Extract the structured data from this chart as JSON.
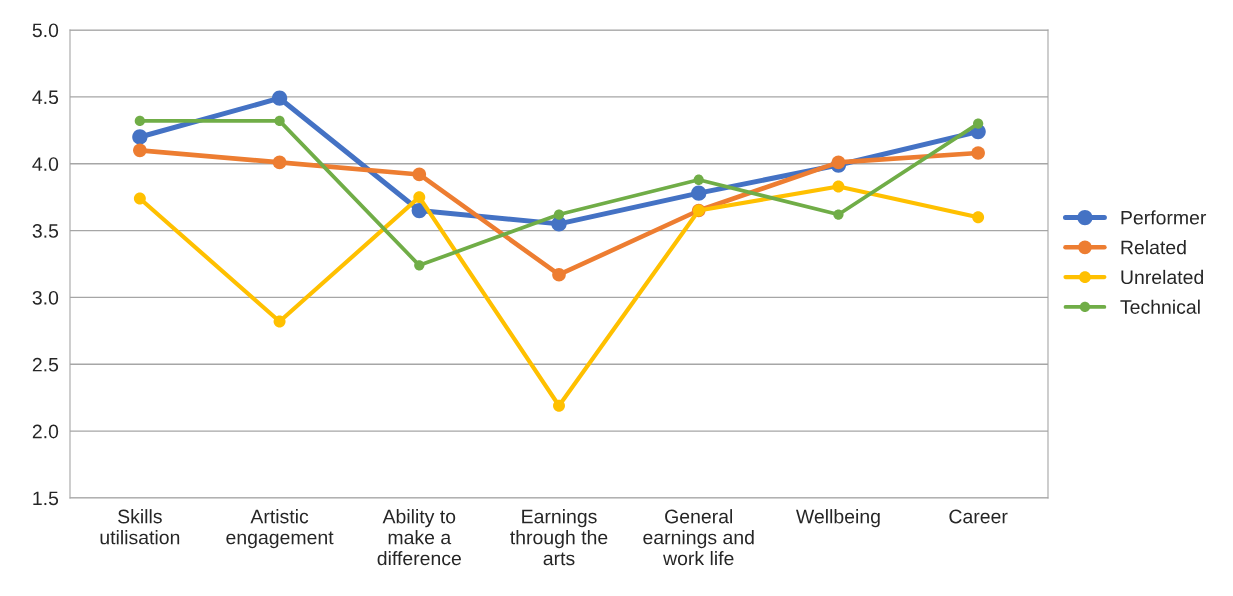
{
  "chart_data": {
    "type": "line",
    "categories": [
      "Skills\nutilisation",
      "Artistic\nengagement",
      "Ability to\nmake a\ndifference",
      "Earnings\nthrough the\narts",
      "General\nearnings and\nwork life",
      "Wellbeing",
      "Career"
    ],
    "series": [
      {
        "name": "Performer",
        "color": "#4472c4",
        "values": [
          4.2,
          4.49,
          3.65,
          3.55,
          3.78,
          3.99,
          4.24
        ]
      },
      {
        "name": "Related",
        "color": "#ed7d31",
        "values": [
          4.1,
          4.01,
          3.92,
          3.17,
          3.65,
          4.01,
          4.08
        ]
      },
      {
        "name": "Unrelated",
        "color": "#ffc000",
        "values": [
          3.74,
          2.82,
          3.75,
          2.19,
          3.65,
          3.83,
          3.6
        ]
      },
      {
        "name": "Technical",
        "color": "#70ad47",
        "values": [
          4.32,
          4.32,
          3.24,
          3.62,
          3.88,
          3.62,
          4.3
        ]
      }
    ],
    "ylim": [
      1.5,
      5.0
    ],
    "yticks": [
      {
        "value": 1.5,
        "label": "1.5"
      },
      {
        "value": 2.0,
        "label": "2.0"
      },
      {
        "value": 2.5,
        "label": "2.5"
      },
      {
        "value": 3.0,
        "label": "3.0"
      },
      {
        "value": 3.5,
        "label": "3.5"
      },
      {
        "value": 4.0,
        "label": "4.0"
      },
      {
        "value": 4.5,
        "label": "4.5"
      },
      {
        "value": 5.0,
        "label": "5.0"
      }
    ],
    "grid": "y",
    "legend": "right",
    "marker": "circle",
    "line_style": "solid"
  }
}
